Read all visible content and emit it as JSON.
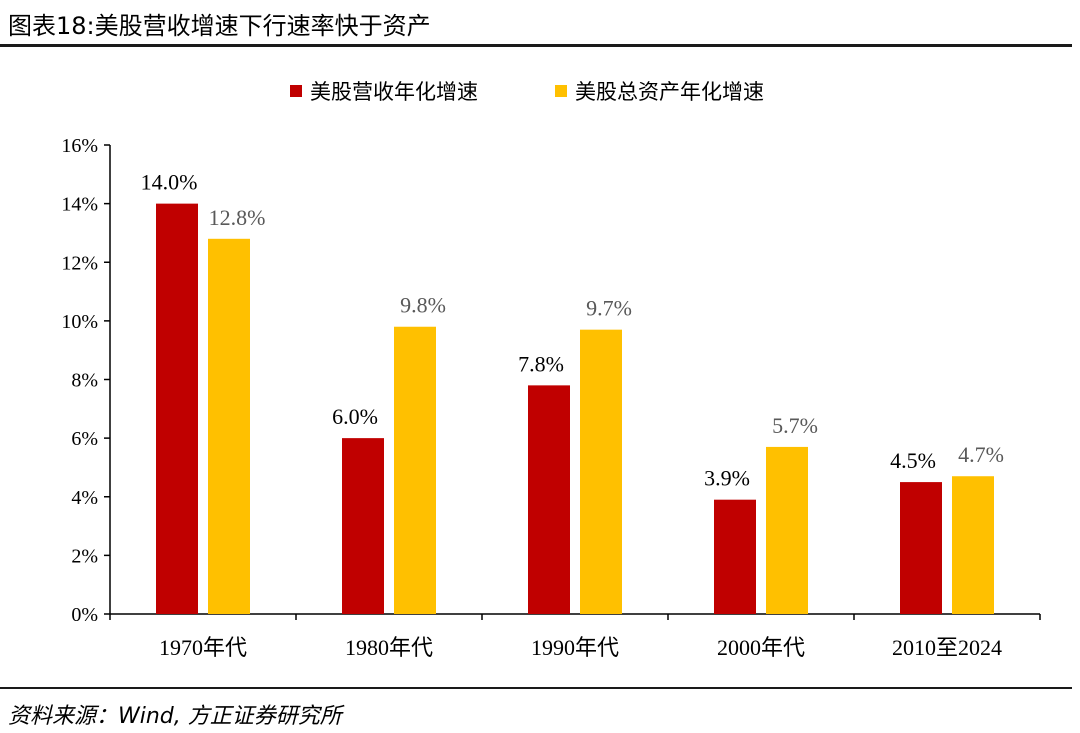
{
  "title": "图表18:美股营收增速下行速率快于资产",
  "source": "资料来源：Wind, 方正证券研究所",
  "chart_data": {
    "type": "bar",
    "categories": [
      "1970年代",
      "1980年代",
      "1990年代",
      "2000年代",
      "2010至2024"
    ],
    "series": [
      {
        "name": "美股营收年化增速",
        "color": "#C00000",
        "label_color": "#000000",
        "values": [
          14.0,
          6.0,
          7.8,
          3.9,
          4.5
        ],
        "labels": [
          "14.0%",
          "6.0%",
          "7.8%",
          "3.9%",
          "4.5%"
        ]
      },
      {
        "name": "美股总资产年化增速",
        "color": "#FFC000",
        "label_color": "#595959",
        "values": [
          12.8,
          9.8,
          9.7,
          5.7,
          4.7
        ],
        "labels": [
          "12.8%",
          "9.8%",
          "9.7%",
          "5.7%",
          "4.7%"
        ]
      }
    ],
    "yticks": [
      "0%",
      "2%",
      "4%",
      "6%",
      "8%",
      "10%",
      "12%",
      "14%",
      "16%"
    ],
    "ylim": [
      0,
      16
    ],
    "grid": false,
    "legend_position": "top"
  }
}
